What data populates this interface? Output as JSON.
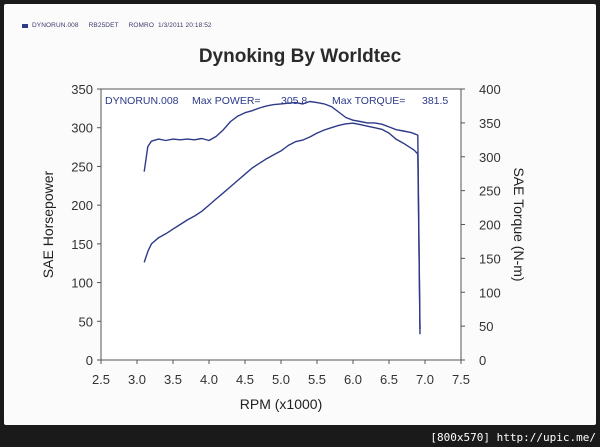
{
  "header": {
    "run": "DYNORUN.008",
    "engine": "RB25DET",
    "operator": "ROMRO",
    "datetime": "1/3/2011 20:18:52"
  },
  "title": "Dynoking By Worldtec",
  "footer": "[800x570] http://upic.me/",
  "colors": {
    "curve": "#2d3a88",
    "plot_bg": "#ffffff",
    "frame": "#555555"
  },
  "chart_data": {
    "type": "line",
    "title": "Dynoking By Worldtec",
    "xlabel": "RPM (x1000)",
    "ylabel": "SAE Horsepower",
    "y2label": "SAE Torque (N-m)",
    "xlim": [
      2.5,
      7.5
    ],
    "ylim": [
      0,
      350
    ],
    "y2lim": [
      0,
      400
    ],
    "xticks": [
      "2.5",
      "3.0",
      "3.5",
      "4.0",
      "4.5",
      "5.0",
      "5.5",
      "6.0",
      "6.5",
      "7.0",
      "7.5"
    ],
    "yticks": [
      "0",
      "50",
      "100",
      "150",
      "200",
      "250",
      "300",
      "350"
    ],
    "y2ticks": [
      "0",
      "50",
      "100",
      "150",
      "200",
      "250",
      "300",
      "350",
      "400"
    ],
    "annotation": {
      "run": "DYNORUN.008",
      "power_label": "Max POWER=",
      "power_value": "305.8",
      "torque_label": "Max TORQUE=",
      "torque_value": "381.5"
    },
    "series": [
      {
        "name": "SAE Horsepower",
        "axis": "left",
        "x": [
          3.1,
          3.15,
          3.2,
          3.3,
          3.4,
          3.5,
          3.6,
          3.7,
          3.8,
          3.9,
          4.0,
          4.1,
          4.2,
          4.3,
          4.4,
          4.5,
          4.6,
          4.7,
          4.8,
          4.9,
          5.0,
          5.1,
          5.2,
          5.3,
          5.4,
          5.5,
          5.6,
          5.7,
          5.8,
          5.9,
          6.0,
          6.1,
          6.2,
          6.3,
          6.4,
          6.5,
          6.6,
          6.7,
          6.8,
          6.85,
          6.9,
          6.93
        ],
        "y": [
          126,
          140,
          150,
          158,
          163,
          169,
          175,
          181,
          186,
          192,
          200,
          208,
          216,
          224,
          232,
          240,
          248,
          254,
          260,
          265,
          270,
          277,
          282,
          284,
          288,
          293,
          297,
          300,
          303,
          305,
          305.8,
          304,
          302,
          300,
          298,
          293,
          285,
          280,
          274,
          271,
          266,
          40
        ]
      },
      {
        "name": "SAE Torque (N-m)",
        "axis": "right",
        "x": [
          3.1,
          3.15,
          3.2,
          3.3,
          3.4,
          3.5,
          3.6,
          3.7,
          3.8,
          3.9,
          4.0,
          4.1,
          4.2,
          4.3,
          4.4,
          4.5,
          4.6,
          4.7,
          4.8,
          4.9,
          5.0,
          5.1,
          5.2,
          5.3,
          5.4,
          5.5,
          5.6,
          5.7,
          5.8,
          5.9,
          6.0,
          6.1,
          6.2,
          6.3,
          6.4,
          6.5,
          6.6,
          6.7,
          6.8,
          6.85,
          6.9,
          6.93
        ],
        "y": [
          278,
          315,
          323,
          326,
          324,
          326,
          325,
          326,
          325,
          327,
          324,
          330,
          340,
          352,
          360,
          365,
          368,
          372,
          375,
          377,
          378,
          379,
          380,
          378,
          381.5,
          380,
          378,
          374,
          366,
          358,
          354,
          352,
          350,
          350,
          348,
          344,
          340,
          338,
          336,
          334,
          332,
          38
        ]
      }
    ]
  }
}
